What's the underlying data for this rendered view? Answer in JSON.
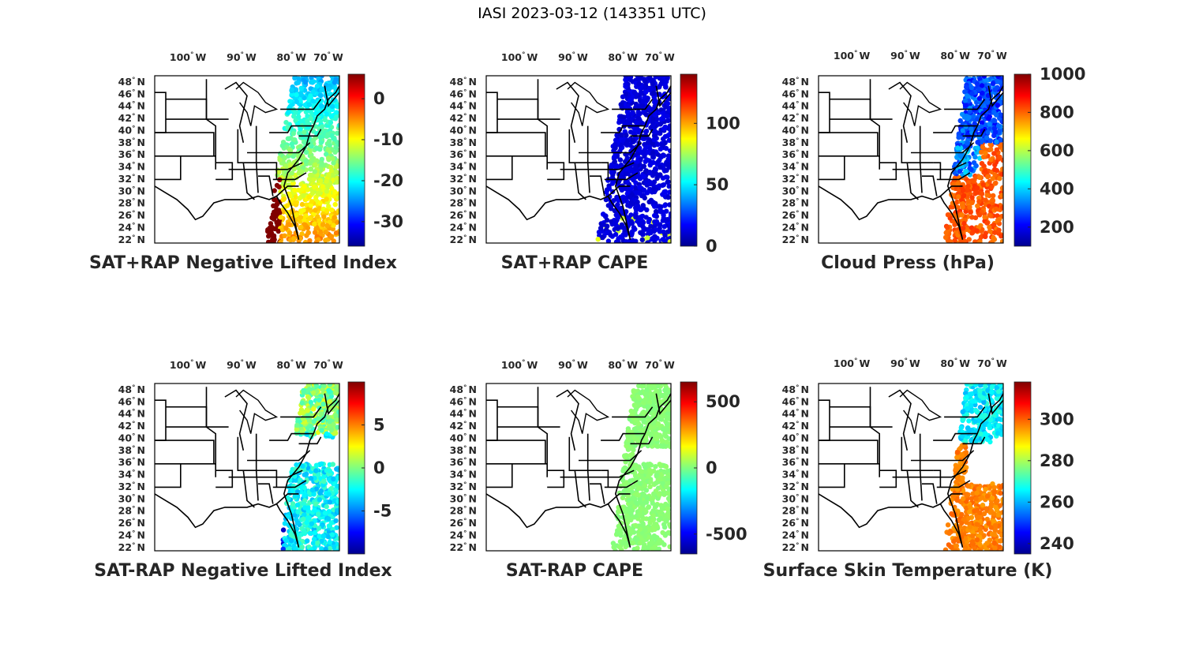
{
  "figure": {
    "title": "IASI 2023-03-12 (143351 UTC)",
    "colormap": [
      "#00008f",
      "#0000ff",
      "#0080ff",
      "#00ffff",
      "#80ff80",
      "#ffff00",
      "#ff8000",
      "#ff0000",
      "#800000"
    ]
  },
  "panels": [
    {
      "title": "SAT+RAP Negative Lifted Index",
      "lon_ticks": [
        "100",
        "90",
        "80",
        "70"
      ],
      "lat_ticks": [
        "48",
        "46",
        "44",
        "42",
        "40",
        "38",
        "36",
        "34",
        "32",
        "30",
        "28",
        "26",
        "24",
        "22"
      ],
      "colorbar": {
        "ticks": [
          "0",
          "-10",
          "-20",
          "-30"
        ],
        "tick_values": [
          0,
          -10,
          -20,
          -30
        ],
        "range": [
          -36,
          6
        ]
      },
      "field": {
        "swath": "wide",
        "dominant": "mixed"
      }
    },
    {
      "title": "SAT+RAP CAPE",
      "lon_ticks": [
        "100",
        "90",
        "80",
        "70"
      ],
      "lat_ticks": [
        "48",
        "46",
        "44",
        "42",
        "40",
        "38",
        "36",
        "34",
        "32",
        "30",
        "28",
        "26",
        "24",
        "22"
      ],
      "colorbar": {
        "ticks": [
          "100",
          "50",
          "0"
        ],
        "tick_values": [
          100,
          50,
          0
        ],
        "range": [
          0,
          140
        ]
      },
      "field": {
        "swath": "wide",
        "dominant": "low"
      }
    },
    {
      "title": "Cloud Press (hPa)",
      "lon_ticks": [
        "100",
        "90",
        "80",
        "70"
      ],
      "lat_ticks": [
        "48",
        "46",
        "44",
        "42",
        "40",
        "38",
        "36",
        "34",
        "32",
        "30",
        "28",
        "26",
        "24",
        "22"
      ],
      "colorbar": {
        "ticks": [
          "1000",
          "800",
          "600",
          "400",
          "200"
        ],
        "tick_values": [
          1000,
          800,
          600,
          400,
          200
        ],
        "range": [
          100,
          1000
        ]
      },
      "field": {
        "swath": "partial",
        "dominant": "high-south"
      }
    },
    {
      "title": "SAT-RAP Negative Lifted Index",
      "lon_ticks": [
        "100",
        "90",
        "80",
        "70"
      ],
      "lat_ticks": [
        "48",
        "46",
        "44",
        "42",
        "40",
        "38",
        "36",
        "34",
        "32",
        "30",
        "28",
        "26",
        "24",
        "22"
      ],
      "colorbar": {
        "ticks": [
          "5",
          "0",
          "-5"
        ],
        "tick_values": [
          5,
          0,
          -5
        ],
        "range": [
          -10,
          10
        ]
      },
      "field": {
        "swath": "partial",
        "dominant": "mid"
      }
    },
    {
      "title": "SAT-RAP CAPE",
      "lon_ticks": [
        "100",
        "90",
        "80",
        "70"
      ],
      "lat_ticks": [
        "48",
        "46",
        "44",
        "42",
        "40",
        "38",
        "36",
        "34",
        "32",
        "30",
        "28",
        "26",
        "24",
        "22"
      ],
      "colorbar": {
        "ticks": [
          "500",
          "0",
          "-500"
        ],
        "tick_values": [
          500,
          0,
          -500
        ],
        "range": [
          -650,
          650
        ]
      },
      "field": {
        "swath": "partial",
        "dominant": "zero"
      }
    },
    {
      "title": "Surface Skin Temperature (K)",
      "lon_ticks": [
        "100",
        "90",
        "80",
        "70"
      ],
      "lat_ticks": [
        "48",
        "46",
        "44",
        "42",
        "40",
        "38",
        "36",
        "34",
        "32",
        "30",
        "28",
        "26",
        "24",
        "22"
      ],
      "colorbar": {
        "ticks": [
          "300",
          "280",
          "260",
          "240"
        ],
        "tick_values": [
          300,
          280,
          260,
          240
        ],
        "range": [
          235,
          318
        ]
      },
      "field": {
        "swath": "partial",
        "dominant": "warm-south"
      }
    }
  ]
}
